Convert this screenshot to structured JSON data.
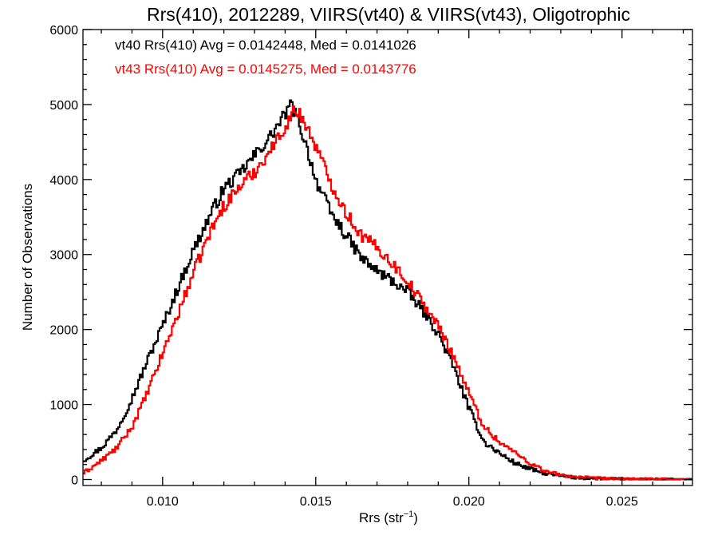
{
  "chart_data": {
    "type": "line",
    "step": true,
    "title": "Rrs(410), 2012289, VIIRS(vt40) & VIIRS(vt43), Oligotrophic",
    "xlabel_main": "Rrs (str",
    "xlabel_sup": "−1",
    "xlabel_end": ")",
    "ylabel": "Number of Observations",
    "xlim": [
      0.0074,
      0.0273
    ],
    "ylim": [
      -80,
      6000
    ],
    "xticks": [
      0.01,
      0.015,
      0.02,
      0.025
    ],
    "xtick_labels": [
      "0.010",
      "0.015",
      "0.020",
      "0.025"
    ],
    "yticks": [
      0,
      1000,
      2000,
      3000,
      4000,
      5000,
      6000
    ],
    "ytick_labels": [
      "0",
      "1000",
      "2000",
      "3000",
      "4000",
      "5000",
      "6000"
    ],
    "legend": [
      {
        "text": "vt40 Rrs(410) Avg = 0.0142448, Med = 0.0141026",
        "color": "#000000"
      },
      {
        "text": "vt43 Rrs(410) Avg = 0.0145275, Med = 0.0143776",
        "color": "#ff0000"
      }
    ],
    "series": [
      {
        "color": "#000000",
        "points": [
          [
            0.0074,
            250
          ],
          [
            0.008,
            420
          ],
          [
            0.0085,
            660
          ],
          [
            0.009,
            1080
          ],
          [
            0.0095,
            1580
          ],
          [
            0.01,
            2050
          ],
          [
            0.0105,
            2550
          ],
          [
            0.011,
            3050
          ],
          [
            0.0115,
            3480
          ],
          [
            0.012,
            3880
          ],
          [
            0.0125,
            4070
          ],
          [
            0.013,
            4320
          ],
          [
            0.0135,
            4560
          ],
          [
            0.014,
            4870
          ],
          [
            0.0142,
            5000
          ],
          [
            0.0145,
            4700
          ],
          [
            0.0148,
            4300
          ],
          [
            0.015,
            4000
          ],
          [
            0.0155,
            3550
          ],
          [
            0.016,
            3250
          ],
          [
            0.0165,
            2950
          ],
          [
            0.017,
            2780
          ],
          [
            0.0175,
            2650
          ],
          [
            0.018,
            2500
          ],
          [
            0.0185,
            2250
          ],
          [
            0.019,
            1950
          ],
          [
            0.0195,
            1500
          ],
          [
            0.02,
            950
          ],
          [
            0.0205,
            500
          ],
          [
            0.021,
            350
          ],
          [
            0.0215,
            220
          ],
          [
            0.022,
            140
          ],
          [
            0.0225,
            80
          ],
          [
            0.023,
            45
          ],
          [
            0.0235,
            25
          ],
          [
            0.024,
            12
          ],
          [
            0.025,
            5
          ],
          [
            0.0273,
            0
          ]
        ]
      },
      {
        "color": "#ff0000",
        "points": [
          [
            0.0074,
            80
          ],
          [
            0.008,
            250
          ],
          [
            0.0085,
            420
          ],
          [
            0.009,
            700
          ],
          [
            0.0095,
            1150
          ],
          [
            0.01,
            1680
          ],
          [
            0.0105,
            2200
          ],
          [
            0.011,
            2750
          ],
          [
            0.0115,
            3250
          ],
          [
            0.012,
            3650
          ],
          [
            0.0125,
            3900
          ],
          [
            0.013,
            4100
          ],
          [
            0.0135,
            4380
          ],
          [
            0.014,
            4700
          ],
          [
            0.0143,
            4920
          ],
          [
            0.0145,
            4870
          ],
          [
            0.015,
            4450
          ],
          [
            0.0155,
            3950
          ],
          [
            0.016,
            3550
          ],
          [
            0.0165,
            3250
          ],
          [
            0.017,
            3100
          ],
          [
            0.0175,
            2880
          ],
          [
            0.018,
            2650
          ],
          [
            0.0185,
            2350
          ],
          [
            0.019,
            2050
          ],
          [
            0.0195,
            1650
          ],
          [
            0.02,
            1150
          ],
          [
            0.0205,
            700
          ],
          [
            0.021,
            500
          ],
          [
            0.0215,
            360
          ],
          [
            0.022,
            220
          ],
          [
            0.0225,
            110
          ],
          [
            0.023,
            60
          ],
          [
            0.0235,
            35
          ],
          [
            0.024,
            20
          ],
          [
            0.025,
            8
          ],
          [
            0.0273,
            0
          ]
        ]
      }
    ]
  }
}
